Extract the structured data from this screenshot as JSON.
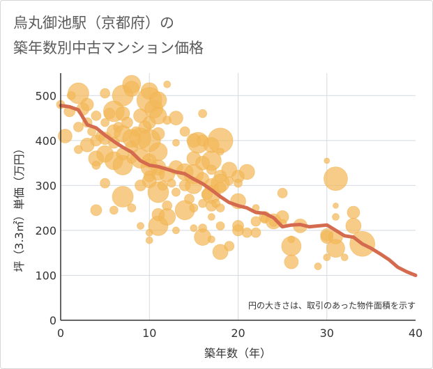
{
  "title_line1": "烏丸御池駅（京都府）の",
  "title_line2": "築年数別中古マンション価格",
  "chart_data": {
    "type": "scatter",
    "xlabel": "築年数（年）",
    "ylabel": "坪（3.3㎡）単価（万円）",
    "xlim": [
      0,
      40
    ],
    "ylim": [
      0,
      550
    ],
    "x_ticks": [
      "0",
      "10",
      "20",
      "30",
      "40"
    ],
    "y_ticks": [
      "0",
      "100",
      "200",
      "300",
      "400",
      "500"
    ],
    "note": "円の大きさは、取引のあった物件面積を示す",
    "bubble_color": "#f3b95a",
    "line_color": "#d46a4e",
    "grid": true,
    "trend_line": {
      "x": [
        0,
        1,
        2,
        3,
        4,
        5,
        6,
        7,
        8,
        9,
        10,
        11,
        12,
        13,
        14,
        15,
        16,
        17,
        18,
        19,
        20,
        21,
        22,
        23,
        24,
        25,
        26,
        27,
        28,
        29,
        30,
        31,
        32,
        33,
        34,
        35,
        36,
        37,
        38,
        39,
        40
      ],
      "y": [
        478,
        475,
        468,
        435,
        428,
        412,
        398,
        385,
        374,
        355,
        345,
        342,
        336,
        330,
        326,
        314,
        304,
        290,
        275,
        262,
        255,
        250,
        240,
        238,
        228,
        208,
        212,
        213,
        208,
        210,
        212,
        200,
        188,
        185,
        170,
        160,
        148,
        135,
        118,
        108,
        100
      ]
    },
    "points": [
      {
        "x": 0,
        "y": 480,
        "s": 6
      },
      {
        "x": 0.5,
        "y": 410,
        "s": 10
      },
      {
        "x": 1,
        "y": 465,
        "s": 8
      },
      {
        "x": 1.2,
        "y": 500,
        "s": 6
      },
      {
        "x": 2,
        "y": 505,
        "s": 15
      },
      {
        "x": 2,
        "y": 430,
        "s": 7
      },
      {
        "x": 2,
        "y": 380,
        "s": 6
      },
      {
        "x": 2.5,
        "y": 470,
        "s": 9
      },
      {
        "x": 3,
        "y": 480,
        "s": 9
      },
      {
        "x": 3,
        "y": 440,
        "s": 7
      },
      {
        "x": 3,
        "y": 390,
        "s": 10
      },
      {
        "x": 3.5,
        "y": 420,
        "s": 6
      },
      {
        "x": 4,
        "y": 455,
        "s": 7
      },
      {
        "x": 4,
        "y": 400,
        "s": 8
      },
      {
        "x": 4,
        "y": 360,
        "s": 11
      },
      {
        "x": 4,
        "y": 345,
        "s": 6
      },
      {
        "x": 4,
        "y": 245,
        "s": 8
      },
      {
        "x": 4.5,
        "y": 410,
        "s": 7
      },
      {
        "x": 5,
        "y": 505,
        "s": 7
      },
      {
        "x": 5,
        "y": 440,
        "s": 6
      },
      {
        "x": 5,
        "y": 405,
        "s": 9
      },
      {
        "x": 5,
        "y": 370,
        "s": 12
      },
      {
        "x": 5,
        "y": 305,
        "s": 7
      },
      {
        "x": 5.5,
        "y": 460,
        "s": 8
      },
      {
        "x": 6,
        "y": 465,
        "s": 15
      },
      {
        "x": 6,
        "y": 420,
        "s": 10
      },
      {
        "x": 6,
        "y": 395,
        "s": 8
      },
      {
        "x": 6,
        "y": 355,
        "s": 13
      },
      {
        "x": 6,
        "y": 245,
        "s": 6
      },
      {
        "x": 6.5,
        "y": 430,
        "s": 7
      },
      {
        "x": 7,
        "y": 500,
        "s": 15
      },
      {
        "x": 7,
        "y": 460,
        "s": 10
      },
      {
        "x": 7,
        "y": 415,
        "s": 12
      },
      {
        "x": 7,
        "y": 370,
        "s": 9
      },
      {
        "x": 7,
        "y": 345,
        "s": 14
      },
      {
        "x": 7,
        "y": 275,
        "s": 15
      },
      {
        "x": 7.5,
        "y": 440,
        "s": 8
      },
      {
        "x": 8,
        "y": 525,
        "s": 13
      },
      {
        "x": 8,
        "y": 515,
        "s": 11
      },
      {
        "x": 8,
        "y": 405,
        "s": 13
      },
      {
        "x": 8,
        "y": 385,
        "s": 9
      },
      {
        "x": 8,
        "y": 360,
        "s": 7
      },
      {
        "x": 8,
        "y": 250,
        "s": 6
      },
      {
        "x": 8.5,
        "y": 420,
        "s": 7
      },
      {
        "x": 9,
        "y": 455,
        "s": 10
      },
      {
        "x": 9,
        "y": 405,
        "s": 15
      },
      {
        "x": 9,
        "y": 360,
        "s": 14
      },
      {
        "x": 9,
        "y": 300,
        "s": 8
      },
      {
        "x": 9,
        "y": 210,
        "s": 5
      },
      {
        "x": 9.5,
        "y": 430,
        "s": 9
      },
      {
        "x": 10,
        "y": 510,
        "s": 12
      },
      {
        "x": 10,
        "y": 490,
        "s": 18
      },
      {
        "x": 10,
        "y": 440,
        "s": 9
      },
      {
        "x": 10,
        "y": 400,
        "s": 16
      },
      {
        "x": 10,
        "y": 355,
        "s": 10
      },
      {
        "x": 10,
        "y": 340,
        "s": 12
      },
      {
        "x": 10,
        "y": 320,
        "s": 8
      },
      {
        "x": 10,
        "y": 310,
        "s": 10
      },
      {
        "x": 10,
        "y": 195,
        "s": 5
      },
      {
        "x": 10,
        "y": 178,
        "s": 5
      },
      {
        "x": 10.5,
        "y": 470,
        "s": 13
      },
      {
        "x": 11,
        "y": 490,
        "s": 12
      },
      {
        "x": 11,
        "y": 455,
        "s": 12
      },
      {
        "x": 11,
        "y": 415,
        "s": 9
      },
      {
        "x": 11,
        "y": 375,
        "s": 13
      },
      {
        "x": 11,
        "y": 340,
        "s": 11
      },
      {
        "x": 11,
        "y": 325,
        "s": 9
      },
      {
        "x": 11,
        "y": 285,
        "s": 15
      },
      {
        "x": 11,
        "y": 235,
        "s": 9
      },
      {
        "x": 11,
        "y": 210,
        "s": 14
      },
      {
        "x": 11.5,
        "y": 300,
        "s": 7
      },
      {
        "x": 12,
        "y": 525,
        "s": 5
      },
      {
        "x": 12,
        "y": 445,
        "s": 6
      },
      {
        "x": 12,
        "y": 325,
        "s": 11
      },
      {
        "x": 12,
        "y": 255,
        "s": 7
      },
      {
        "x": 12,
        "y": 230,
        "s": 12
      },
      {
        "x": 12.5,
        "y": 305,
        "s": 6
      },
      {
        "x": 13,
        "y": 450,
        "s": 10
      },
      {
        "x": 13,
        "y": 395,
        "s": 5
      },
      {
        "x": 13,
        "y": 340,
        "s": 10
      },
      {
        "x": 13,
        "y": 285,
        "s": 6
      },
      {
        "x": 13,
        "y": 200,
        "s": 5
      },
      {
        "x": 14,
        "y": 420,
        "s": 7
      },
      {
        "x": 14,
        "y": 330,
        "s": 12
      },
      {
        "x": 14,
        "y": 300,
        "s": 8
      },
      {
        "x": 14,
        "y": 245,
        "s": 14
      },
      {
        "x": 14.5,
        "y": 270,
        "s": 7
      },
      {
        "x": 15,
        "y": 400,
        "s": 10
      },
      {
        "x": 15,
        "y": 360,
        "s": 10
      },
      {
        "x": 15,
        "y": 325,
        "s": 14
      },
      {
        "x": 15,
        "y": 300,
        "s": 12
      },
      {
        "x": 15,
        "y": 250,
        "s": 6
      },
      {
        "x": 15,
        "y": 205,
        "s": 5
      },
      {
        "x": 15.5,
        "y": 395,
        "s": 15
      },
      {
        "x": 16,
        "y": 460,
        "s": 6
      },
      {
        "x": 16,
        "y": 400,
        "s": 8
      },
      {
        "x": 16,
        "y": 350,
        "s": 10
      },
      {
        "x": 16,
        "y": 315,
        "s": 9
      },
      {
        "x": 16,
        "y": 260,
        "s": 6
      },
      {
        "x": 16,
        "y": 205,
        "s": 6
      },
      {
        "x": 16,
        "y": 185,
        "s": 12
      },
      {
        "x": 16.5,
        "y": 280,
        "s": 8
      },
      {
        "x": 17,
        "y": 390,
        "s": 11
      },
      {
        "x": 17,
        "y": 355,
        "s": 14
      },
      {
        "x": 17,
        "y": 335,
        "s": 7
      },
      {
        "x": 17,
        "y": 300,
        "s": 10
      },
      {
        "x": 17,
        "y": 280,
        "s": 13
      },
      {
        "x": 17,
        "y": 255,
        "s": 8
      },
      {
        "x": 17,
        "y": 230,
        "s": 5
      },
      {
        "x": 17,
        "y": 180,
        "s": 5
      },
      {
        "x": 17.5,
        "y": 260,
        "s": 6
      },
      {
        "x": 18,
        "y": 400,
        "s": 18
      },
      {
        "x": 18,
        "y": 375,
        "s": 5
      },
      {
        "x": 18,
        "y": 320,
        "s": 9
      },
      {
        "x": 18,
        "y": 305,
        "s": 13
      },
      {
        "x": 18,
        "y": 295,
        "s": 8
      },
      {
        "x": 18,
        "y": 250,
        "s": 6
      },
      {
        "x": 18,
        "y": 210,
        "s": 6
      },
      {
        "x": 18,
        "y": 152,
        "s": 11
      },
      {
        "x": 19,
        "y": 335,
        "s": 11
      },
      {
        "x": 19,
        "y": 310,
        "s": 6
      },
      {
        "x": 19,
        "y": 165,
        "s": 7
      },
      {
        "x": 20,
        "y": 320,
        "s": 9
      },
      {
        "x": 20,
        "y": 305,
        "s": 6
      },
      {
        "x": 20,
        "y": 265,
        "s": 11
      },
      {
        "x": 20,
        "y": 210,
        "s": 8
      },
      {
        "x": 20,
        "y": 200,
        "s": 8
      },
      {
        "x": 21,
        "y": 330,
        "s": 11
      },
      {
        "x": 21,
        "y": 195,
        "s": 7
      },
      {
        "x": 22,
        "y": 250,
        "s": 5
      },
      {
        "x": 22,
        "y": 220,
        "s": 7
      },
      {
        "x": 22,
        "y": 195,
        "s": 7
      },
      {
        "x": 23,
        "y": 230,
        "s": 8
      },
      {
        "x": 23,
        "y": 225,
        "s": 6
      },
      {
        "x": 24,
        "y": 220,
        "s": 11
      },
      {
        "x": 24,
        "y": 218,
        "s": 6
      },
      {
        "x": 25,
        "y": 283,
        "s": 7
      },
      {
        "x": 25,
        "y": 230,
        "s": 9
      },
      {
        "x": 25,
        "y": 215,
        "s": 6
      },
      {
        "x": 26,
        "y": 180,
        "s": 5
      },
      {
        "x": 26,
        "y": 165,
        "s": 14
      },
      {
        "x": 26,
        "y": 130,
        "s": 10
      },
      {
        "x": 27,
        "y": 210,
        "s": 10
      },
      {
        "x": 29,
        "y": 120,
        "s": 5
      },
      {
        "x": 30,
        "y": 355,
        "s": 4
      },
      {
        "x": 30,
        "y": 190,
        "s": 9
      },
      {
        "x": 30,
        "y": 185,
        "s": 9
      },
      {
        "x": 30,
        "y": 140,
        "s": 5
      },
      {
        "x": 31,
        "y": 315,
        "s": 17
      },
      {
        "x": 31,
        "y": 255,
        "s": 4
      },
      {
        "x": 31,
        "y": 230,
        "s": 5
      },
      {
        "x": 31,
        "y": 185,
        "s": 10
      },
      {
        "x": 31,
        "y": 160,
        "s": 13
      },
      {
        "x": 32,
        "y": 140,
        "s": 5
      },
      {
        "x": 33,
        "y": 240,
        "s": 9
      },
      {
        "x": 33,
        "y": 210,
        "s": 11
      },
      {
        "x": 34,
        "y": 170,
        "s": 18
      }
    ]
  }
}
